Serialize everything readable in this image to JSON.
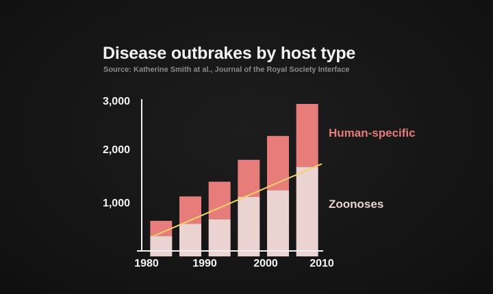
{
  "colors": {
    "background": "#141414",
    "human_specific": "#e67d7b",
    "zoonoses": "#ead3d0",
    "trend": "#f4d36a",
    "axis": "#f2f2f2"
  },
  "chart_data": {
    "type": "bar",
    "stacked": true,
    "title": "Disease outbrakes by host type",
    "subtitle": "Source: Katherine Smith at al., Journal of the Royal Society Interface",
    "x_ticks": [
      "1980",
      "1990",
      "2000",
      "2010"
    ],
    "y_ticks": [
      "1,000",
      "2,000",
      "3,000"
    ],
    "x_range": [
      1980,
      2010
    ],
    "ylim": [
      0,
      3000
    ],
    "bar_centers": [
      1982.5,
      1987.5,
      1992.5,
      1997.5,
      2002.5,
      2007.5
    ],
    "series": [
      {
        "name": "Zoonoses",
        "values": [
          400,
          640,
          730,
          1170,
          1300,
          1760
        ]
      },
      {
        "name": "Human-specific",
        "values": [
          300,
          540,
          740,
          730,
          1070,
          1240
        ]
      }
    ],
    "trend_line": {
      "x": [
        1981,
        2010
      ],
      "y": [
        390,
        1820
      ]
    },
    "legend_placement": "right, inline labels",
    "grid": false
  }
}
